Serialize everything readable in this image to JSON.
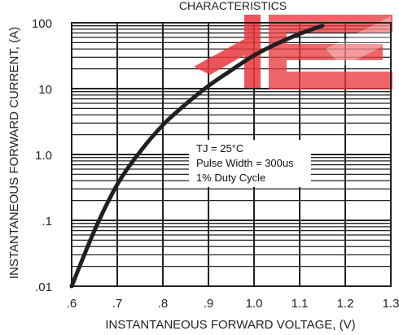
{
  "chart_data": {
    "type": "line",
    "title": "CHARACTERISTICS",
    "xlabel": "INSTANTANEOUS FORWARD VOLTAGE, (V)",
    "ylabel": "INSTANTANEOUS FORWARD CURRENT, (A)",
    "x_ticks": [
      ".6",
      ".7",
      ".8",
      ".9",
      "1.0",
      "1.1",
      "1.2",
      "1.3"
    ],
    "y_ticks": [
      ".01",
      ".1",
      "1.0",
      "10",
      "100"
    ],
    "xlim": [
      0.6,
      1.3
    ],
    "ylim": [
      0.01,
      100
    ],
    "y_scale": "log",
    "grid": true,
    "series": [
      {
        "x": [
          0.6,
          0.65,
          0.7,
          0.75,
          0.8,
          0.85,
          0.9,
          0.95,
          1.0,
          1.05,
          1.1,
          1.15
        ],
        "y": [
          0.01,
          0.07,
          0.35,
          1.1,
          2.8,
          5.8,
          11,
          19,
          32,
          48,
          68,
          90
        ]
      }
    ],
    "annotation": {
      "lines": [
        "TJ = 25°C",
        "Pulse Width = 300us",
        "1% Duty Cycle"
      ]
    },
    "watermark_color": "#e8383d",
    "line_color": "#231f20"
  }
}
